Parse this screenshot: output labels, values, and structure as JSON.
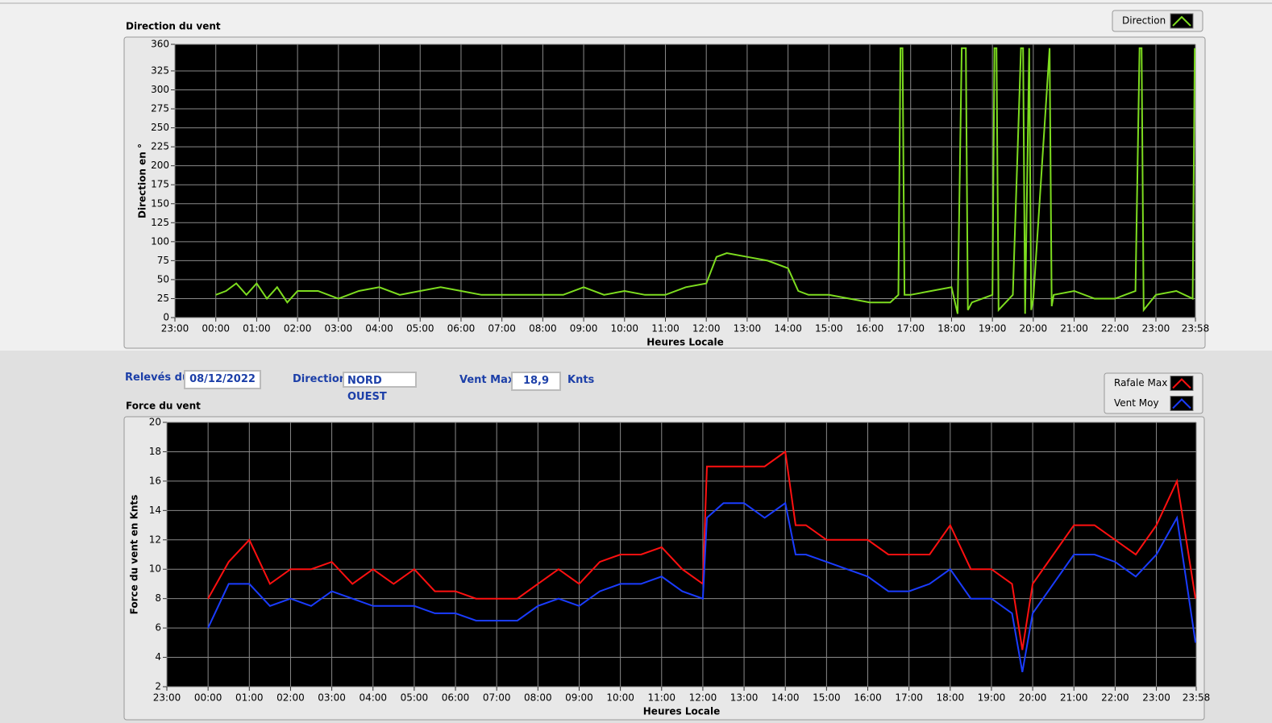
{
  "controls": {
    "date_label": "Relevés du",
    "date_value": "08/12/2022",
    "direction_label": "Direction",
    "direction_value": "NORD OUEST",
    "vent_max_label": "Vent Max",
    "vent_max_value": "18,9",
    "vent_max_unit": "Knts"
  },
  "chart_data": [
    {
      "type": "line",
      "title": "Direction du vent",
      "x_label": "Heures Locale",
      "y_label": "Direction en °",
      "grid": true,
      "xlim": [
        -1,
        23.9667
      ],
      "xticks": [
        {
          "value": -1,
          "label": "23:00"
        },
        {
          "value": 0,
          "label": "00:00"
        },
        {
          "value": 1,
          "label": "01:00"
        },
        {
          "value": 2,
          "label": "02:00"
        },
        {
          "value": 3,
          "label": "03:00"
        },
        {
          "value": 4,
          "label": "04:00"
        },
        {
          "value": 5,
          "label": "05:00"
        },
        {
          "value": 6,
          "label": "06:00"
        },
        {
          "value": 7,
          "label": "07:00"
        },
        {
          "value": 8,
          "label": "08:00"
        },
        {
          "value": 9,
          "label": "09:00"
        },
        {
          "value": 10,
          "label": "10:00"
        },
        {
          "value": 11,
          "label": "11:00"
        },
        {
          "value": 12,
          "label": "12:00"
        },
        {
          "value": 13,
          "label": "13:00"
        },
        {
          "value": 14,
          "label": "14:00"
        },
        {
          "value": 15,
          "label": "15:00"
        },
        {
          "value": 16,
          "label": "16:00"
        },
        {
          "value": 17,
          "label": "17:00"
        },
        {
          "value": 18,
          "label": "18:00"
        },
        {
          "value": 19,
          "label": "19:00"
        },
        {
          "value": 20,
          "label": "20:00"
        },
        {
          "value": 21,
          "label": "21:00"
        },
        {
          "value": 22,
          "label": "22:00"
        },
        {
          "value": 23,
          "label": "23:00"
        },
        {
          "value": 23.9667,
          "label": "23:58"
        }
      ],
      "ylim": [
        0,
        360
      ],
      "yticks": [
        0,
        25,
        50,
        75,
        100,
        125,
        150,
        175,
        200,
        225,
        250,
        275,
        300,
        325,
        360
      ],
      "x": [
        0,
        0.25,
        0.5,
        0.75,
        1,
        1.25,
        1.5,
        1.75,
        2,
        2.5,
        3,
        3.5,
        4,
        4.5,
        5,
        5.5,
        6,
        6.5,
        7,
        7.5,
        8,
        8.5,
        9,
        9.5,
        10,
        10.5,
        11,
        11.5,
        12,
        12.25,
        12.5,
        13,
        13.5,
        14,
        14.25,
        14.5,
        15,
        15.5,
        16,
        16.5,
        16.7,
        16.75,
        16.8,
        16.85,
        17,
        17.5,
        18,
        18.15,
        18.25,
        18.35,
        18.4,
        18.5,
        19,
        19.05,
        19.1,
        19.15,
        19.5,
        19.7,
        19.75,
        19.8,
        19.9,
        19.95,
        20,
        20.4,
        20.45,
        20.5,
        21,
        21.5,
        22,
        22.5,
        22.6,
        22.65,
        22.7,
        23,
        23.5,
        23.9,
        23.95
      ],
      "series": [
        {
          "name": "Direction",
          "color": "#7ddc1f",
          "values": [
            30,
            35,
            45,
            30,
            45,
            25,
            40,
            20,
            35,
            35,
            25,
            35,
            40,
            30,
            35,
            40,
            35,
            30,
            30,
            30,
            30,
            30,
            40,
            30,
            35,
            30,
            30,
            40,
            45,
            80,
            85,
            80,
            75,
            65,
            35,
            30,
            30,
            25,
            20,
            20,
            30,
            355,
            355,
            30,
            30,
            35,
            40,
            5,
            355,
            355,
            10,
            20,
            30,
            355,
            355,
            10,
            30,
            355,
            355,
            5,
            355,
            10,
            25,
            355,
            15,
            30,
            35,
            25,
            25,
            35,
            355,
            355,
            10,
            30,
            35,
            25,
            355
          ]
        }
      ]
    },
    {
      "type": "line",
      "title": "Force du vent",
      "x_label": "Heures Locale",
      "y_label": "Force du vent en Knts",
      "grid": true,
      "xlim": [
        -1,
        23.9667
      ],
      "xticks": [
        {
          "value": -1,
          "label": "23:00"
        },
        {
          "value": 0,
          "label": "00:00"
        },
        {
          "value": 1,
          "label": "01:00"
        },
        {
          "value": 2,
          "label": "02:00"
        },
        {
          "value": 3,
          "label": "03:00"
        },
        {
          "value": 4,
          "label": "04:00"
        },
        {
          "value": 5,
          "label": "05:00"
        },
        {
          "value": 6,
          "label": "06:00"
        },
        {
          "value": 7,
          "label": "07:00"
        },
        {
          "value": 8,
          "label": "08:00"
        },
        {
          "value": 9,
          "label": "09:00"
        },
        {
          "value": 10,
          "label": "10:00"
        },
        {
          "value": 11,
          "label": "11:00"
        },
        {
          "value": 12,
          "label": "12:00"
        },
        {
          "value": 13,
          "label": "13:00"
        },
        {
          "value": 14,
          "label": "14:00"
        },
        {
          "value": 15,
          "label": "15:00"
        },
        {
          "value": 16,
          "label": "16:00"
        },
        {
          "value": 17,
          "label": "17:00"
        },
        {
          "value": 18,
          "label": "18:00"
        },
        {
          "value": 19,
          "label": "19:00"
        },
        {
          "value": 20,
          "label": "20:00"
        },
        {
          "value": 21,
          "label": "21:00"
        },
        {
          "value": 22,
          "label": "22:00"
        },
        {
          "value": 23,
          "label": "23:00"
        },
        {
          "value": 23.9667,
          "label": "23:58"
        }
      ],
      "ylim": [
        2,
        20
      ],
      "yticks": [
        2,
        4,
        6,
        8,
        10,
        12,
        14,
        16,
        18,
        20
      ],
      "x": [
        0,
        0.5,
        1,
        1.5,
        2,
        2.5,
        3,
        3.5,
        4,
        4.5,
        5,
        5.5,
        6,
        6.5,
        7,
        7.5,
        8,
        8.5,
        9,
        9.5,
        10,
        10.5,
        11,
        11.5,
        12,
        12.1,
        12.5,
        13,
        13.5,
        14,
        14.25,
        14.5,
        15,
        15.5,
        16,
        16.5,
        17,
        17.5,
        18,
        18.5,
        19,
        19.5,
        19.75,
        20,
        20.5,
        21,
        21.5,
        22,
        22.5,
        23,
        23.5,
        23.95
      ],
      "series": [
        {
          "name": "Rafale Max",
          "color": "#ff1010",
          "values": [
            8,
            10.5,
            12,
            9,
            10,
            10,
            10.5,
            9,
            10,
            9,
            10,
            8.5,
            8.5,
            8,
            8,
            8,
            9,
            10,
            9,
            10.5,
            11,
            11,
            11.5,
            10,
            9,
            17,
            17,
            17,
            17,
            18,
            13,
            13,
            12,
            12,
            12,
            11,
            11,
            11,
            13,
            10,
            10,
            9,
            4.5,
            9,
            11,
            13,
            13,
            12,
            11,
            13,
            16,
            8
          ]
        },
        {
          "name": "Vent Moy",
          "color": "#1a3cff",
          "values": [
            6,
            9,
            9,
            7.5,
            8,
            7.5,
            8.5,
            8,
            7.5,
            7.5,
            7.5,
            7,
            7,
            6.5,
            6.5,
            6.5,
            7.5,
            8,
            7.5,
            8.5,
            9,
            9,
            9.5,
            8.5,
            8,
            13.5,
            14.5,
            14.5,
            13.5,
            14.5,
            11,
            11,
            10.5,
            10,
            9.5,
            8.5,
            8.5,
            9,
            10,
            8,
            8,
            7,
            3,
            7,
            9,
            11,
            11,
            10.5,
            9.5,
            11,
            13.5,
            5
          ]
        }
      ]
    }
  ]
}
